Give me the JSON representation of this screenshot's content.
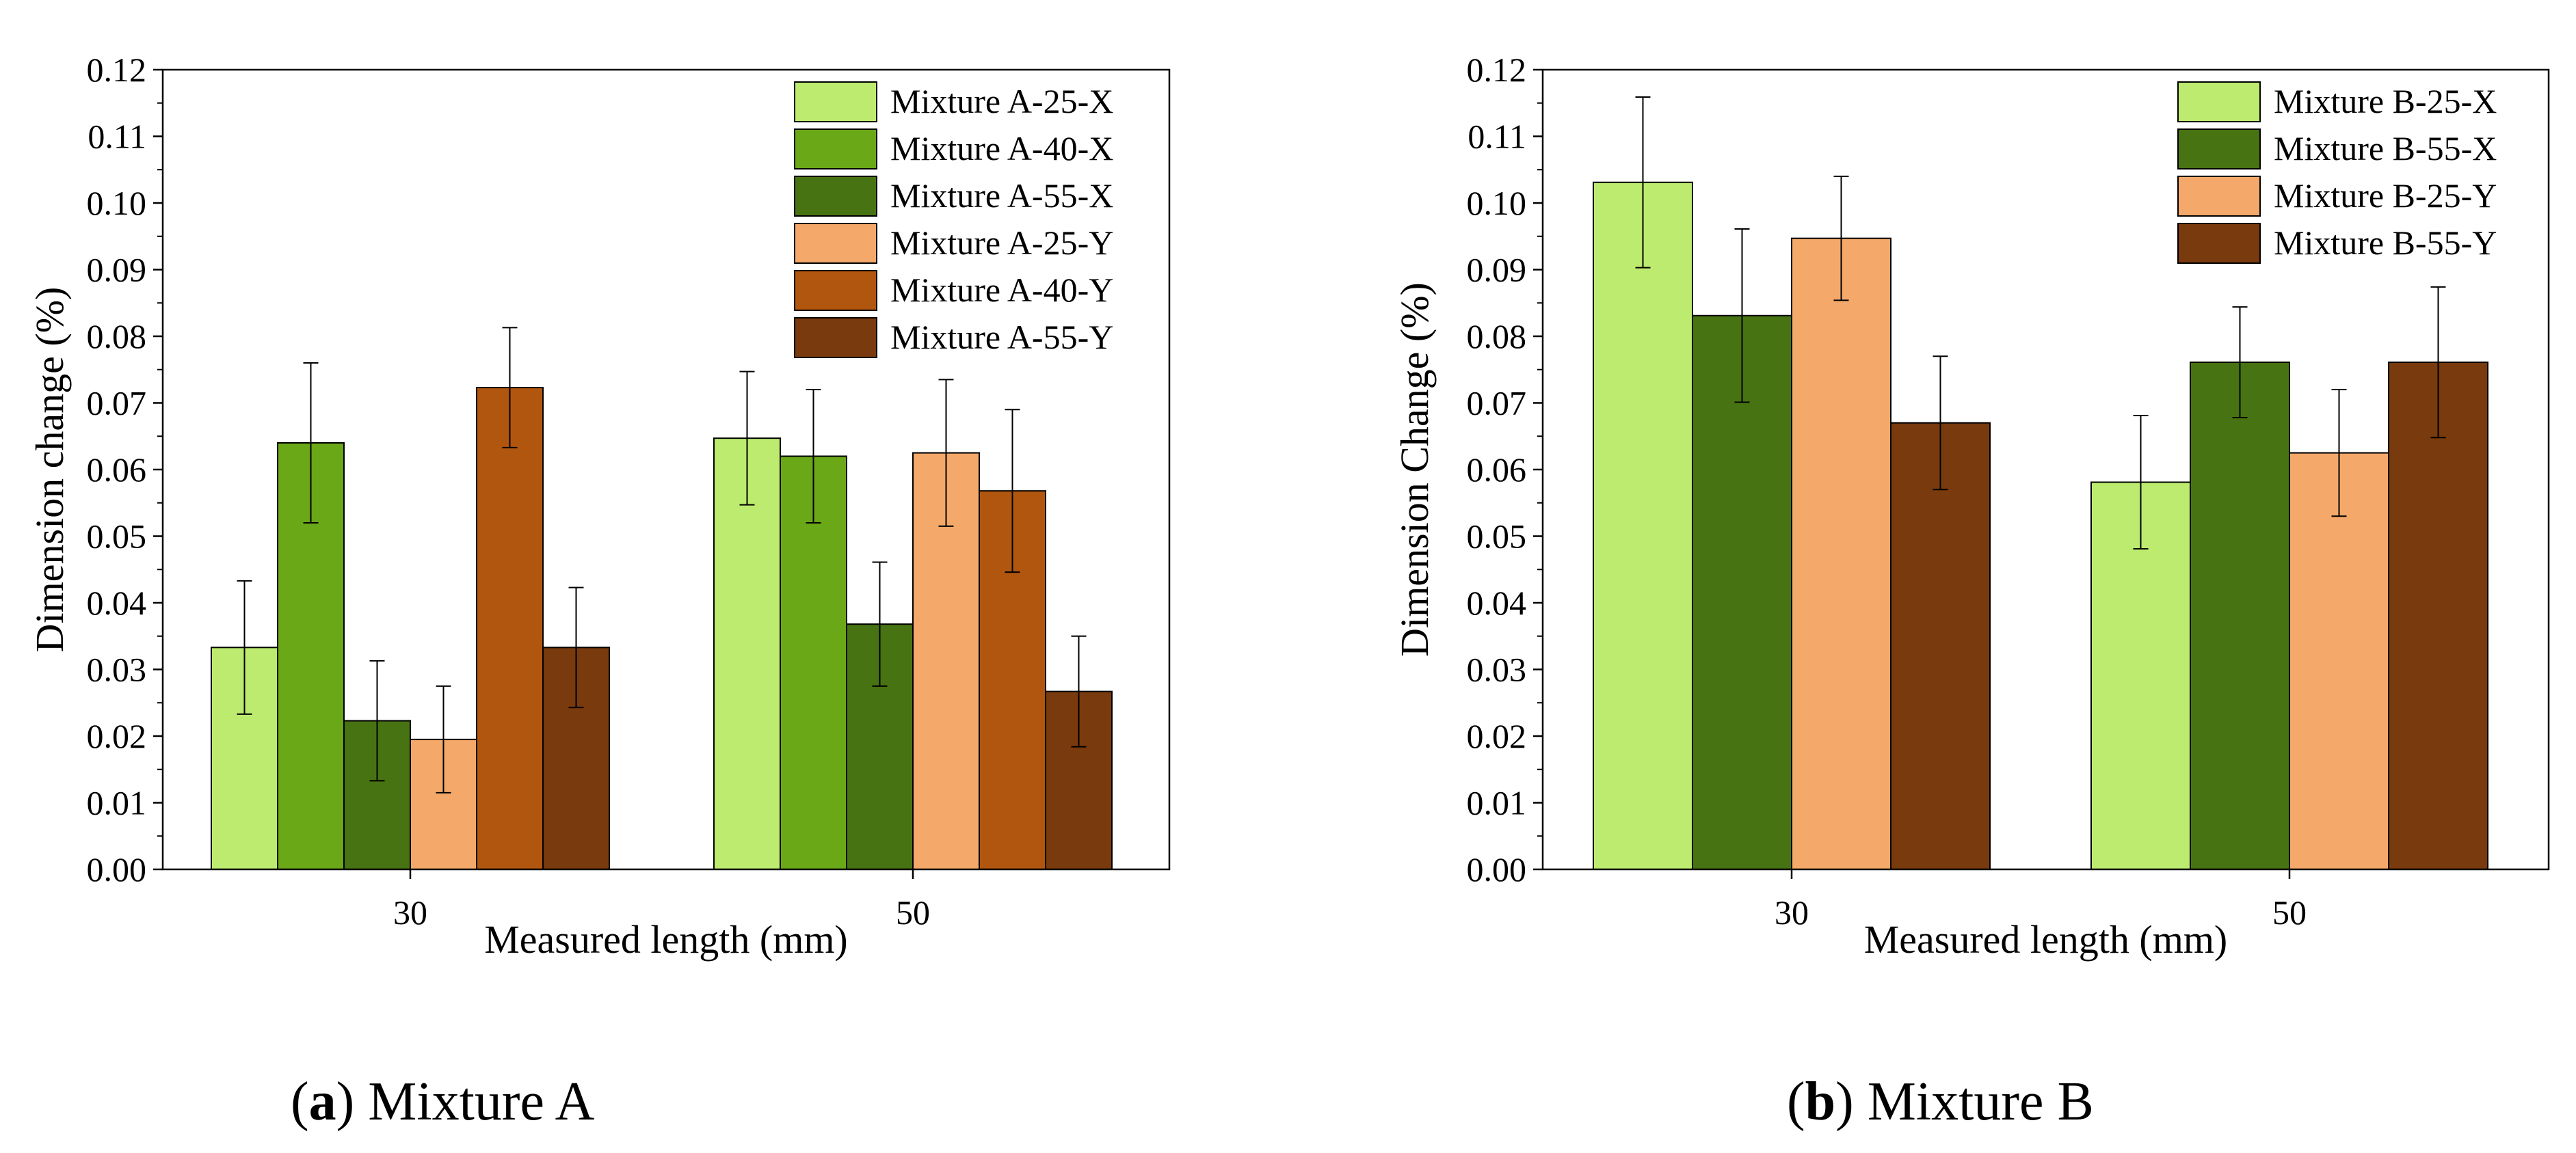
{
  "chart_data": [
    {
      "id": "a",
      "type": "bar",
      "title": "",
      "xlabel": "Measured length (mm)",
      "ylabel": "Dimension change (%)",
      "categories": [
        "30",
        "50"
      ],
      "ylim": [
        0,
        0.12
      ],
      "ytick_step": 0.01,
      "yticks": [
        "0.00",
        "0.01",
        "0.02",
        "0.03",
        "0.04",
        "0.05",
        "0.06",
        "0.07",
        "0.08",
        "0.09",
        "0.10",
        "0.11",
        "0.12"
      ],
      "legend_position": "top-right",
      "grid": false,
      "series": [
        {
          "name": "Mixture A-25-X",
          "color": "#bceb6f",
          "values": [
            0.0333,
            0.0647
          ],
          "errors": [
            0.01,
            0.01
          ]
        },
        {
          "name": "Mixture A-40-X",
          "color": "#6aa818",
          "values": [
            0.064,
            0.062
          ],
          "errors": [
            0.012,
            0.01
          ]
        },
        {
          "name": "Mixture A-55-X",
          "color": "#477313",
          "values": [
            0.0223,
            0.0368
          ],
          "errors": [
            0.009,
            0.0093
          ]
        },
        {
          "name": "Mixture A-25-Y",
          "color": "#f4a96a",
          "values": [
            0.0195,
            0.0625
          ],
          "errors": [
            0.008,
            0.011
          ]
        },
        {
          "name": "Mixture A-40-Y",
          "color": "#b1560f",
          "values": [
            0.0723,
            0.0568
          ],
          "errors": [
            0.009,
            0.0122
          ]
        },
        {
          "name": "Mixture A-55-Y",
          "color": "#793a0e",
          "values": [
            0.0333,
            0.0267
          ],
          "errors": [
            0.009,
            0.0083
          ]
        }
      ]
    },
    {
      "id": "b",
      "type": "bar",
      "title": "",
      "xlabel": "Measured length (mm)",
      "ylabel": "Dimension Change (%)",
      "categories": [
        "30",
        "50"
      ],
      "ylim": [
        0,
        0.12
      ],
      "ytick_step": 0.01,
      "yticks": [
        "0.00",
        "0.01",
        "0.02",
        "0.03",
        "0.04",
        "0.05",
        "0.06",
        "0.07",
        "0.08",
        "0.09",
        "0.10",
        "0.11",
        "0.12"
      ],
      "legend_position": "top-right",
      "grid": false,
      "series": [
        {
          "name": "Mixture B-25-X",
          "color": "#bceb6f",
          "values": [
            0.1031,
            0.0581
          ],
          "errors": [
            0.0128,
            0.01
          ]
        },
        {
          "name": "Mixture B-55-X",
          "color": "#477313",
          "values": [
            0.0831,
            0.0761
          ],
          "errors": [
            0.013,
            0.0083
          ]
        },
        {
          "name": "Mixture B-25-Y",
          "color": "#f4a96a",
          "values": [
            0.0947,
            0.0625
          ],
          "errors": [
            0.0093,
            0.0095
          ]
        },
        {
          "name": "Mixture B-55-Y",
          "color": "#793a0e",
          "values": [
            0.067,
            0.0761
          ],
          "errors": [
            0.01,
            0.0113
          ]
        }
      ]
    }
  ],
  "captions": [
    {
      "letter": "a",
      "text": " Mixture A"
    },
    {
      "letter": "b",
      "text": " Mixture B"
    }
  ]
}
